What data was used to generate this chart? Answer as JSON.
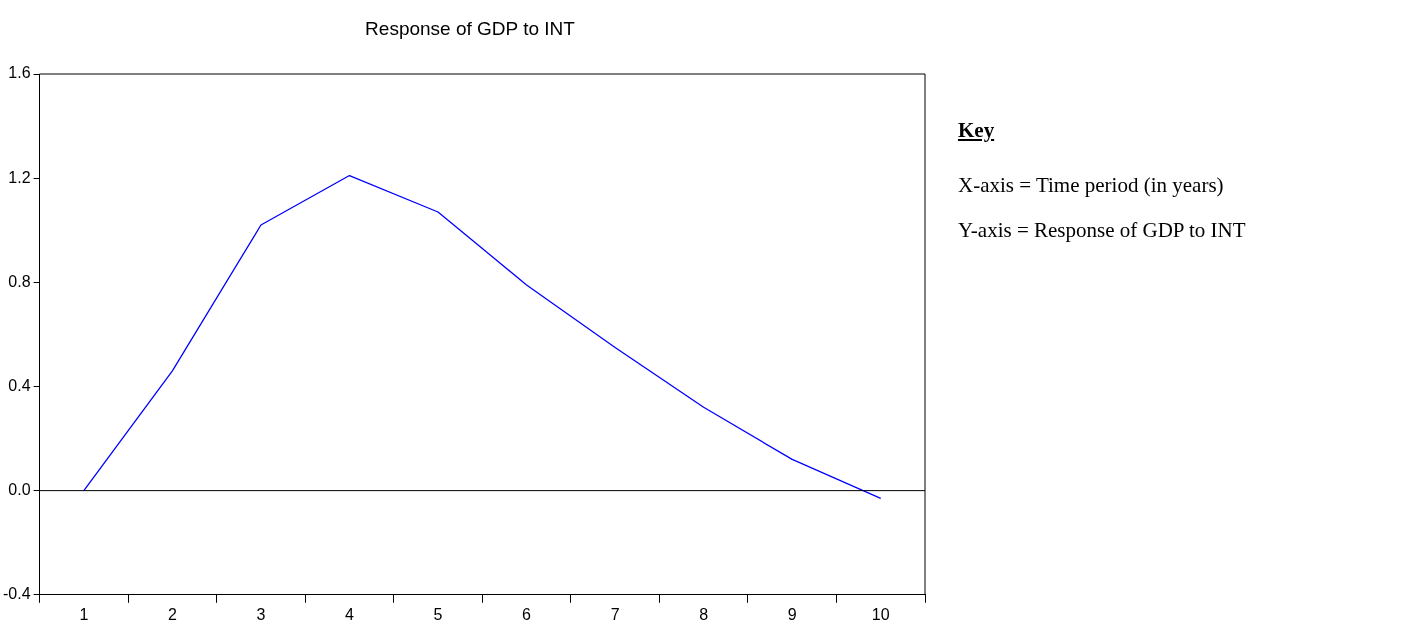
{
  "chart_data": {
    "type": "line",
    "title": "Response of GDP to INT",
    "categories": [
      "1",
      "2",
      "3",
      "4",
      "5",
      "6",
      "7",
      "8",
      "9",
      "10"
    ],
    "series": [
      {
        "color": "#0000ff",
        "values": [
          0.0,
          0.46,
          1.02,
          1.21,
          1.07,
          0.79,
          0.55,
          0.32,
          0.12,
          -0.03
        ]
      }
    ],
    "ylim": [
      -0.4,
      1.6
    ],
    "yticks": [
      {
        "value": -0.4,
        "label": "-0.4"
      },
      {
        "value": 0,
        "label": "0.0"
      },
      0.4,
      0.8,
      1.2,
      1.6
    ],
    "ref_lines": [
      {
        "axis": "y",
        "value": 0,
        "color": "#000000"
      }
    ],
    "grid": false,
    "legend": false,
    "marker": "none",
    "line_style": "solid",
    "annotations": [
      "Key",
      "X-axis = Time period (in years)",
      "Y-axis = Response of GDP to INT"
    ]
  }
}
